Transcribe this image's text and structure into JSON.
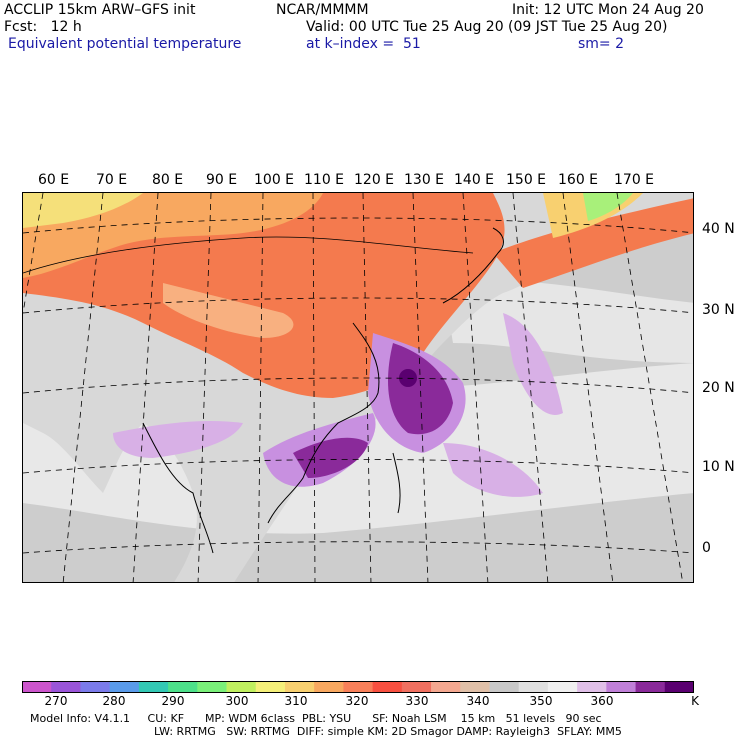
{
  "header": {
    "model": "ACCLIP 15km ARW–GFS init",
    "org": "NCAR/MMMM",
    "init": "Init: 12 UTC Mon 24 Aug 20",
    "fcst": "Fcst:   12 h",
    "valid": "Valid: 00 UTC Tue 25 Aug 20 (09 JST Tue 25 Aug 20)",
    "field": "Equivalent potential temperature",
    "level": "at k–index =  51",
    "smooth": "sm= 2"
  },
  "axes": {
    "lon_labels": [
      "60 E",
      "70 E",
      "80 E",
      "90 E",
      "100 E",
      "110 E",
      "120 E",
      "130 E",
      "140 E",
      "150 E",
      "160 E",
      "170 E"
    ],
    "lat_labels": [
      "40 N",
      "30 N",
      "20 N",
      "10 N",
      "0"
    ]
  },
  "colorbar": {
    "unit": "K",
    "tick_labels": [
      "270",
      "280",
      "290",
      "300",
      "310",
      "320",
      "330",
      "340",
      "350",
      "360"
    ],
    "colors": [
      "#cc55cc",
      "#9a55d8",
      "#7b7bea",
      "#5a9bea",
      "#33c8b4",
      "#4de08a",
      "#7af07a",
      "#c0f060",
      "#f5f07a",
      "#f8d070",
      "#f8a860",
      "#f8805a",
      "#f85040",
      "#f07060",
      "#f4a890",
      "#e0c0a8",
      "#c8c8c8",
      "#e0e0e0",
      "#f0f0f0",
      "#e0c0e8",
      "#c080d8",
      "#8a2a9a",
      "#5a0070"
    ]
  },
  "footer": {
    "line1": "Model Info: V4.1.1     CU: KF      MP: WDM 6class  PBL: YSU      SF: Noah LSM    15 km   51 levels   90 sec",
    "line2": "LW: RRTMG   SW: RRTMG  DIFF: simple KM: 2D Smagor DAMP: Rayleigh3  SFLAY: MM5"
  },
  "map_regions": {
    "land": "land",
    "ocean": "ocean"
  }
}
